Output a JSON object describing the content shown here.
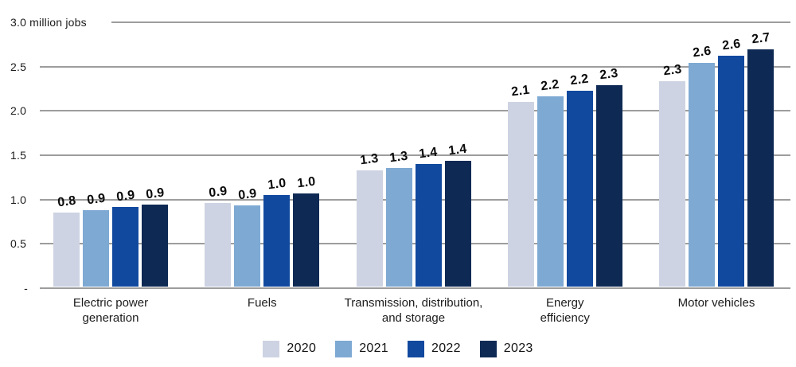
{
  "chart_data": {
    "type": "bar",
    "title": "3.0 million jobs",
    "unit": "million jobs",
    "ymax": 3.0,
    "ylim": [
      0,
      3.0
    ],
    "grid": true,
    "legend_position": "bottom-center",
    "y_ticks": [
      {
        "label": "3.0 million jobs",
        "value": 3.0
      },
      {
        "label": "2.5",
        "value": 2.5
      },
      {
        "label": "2.0",
        "value": 2.0
      },
      {
        "label": "1.5",
        "value": 1.5
      },
      {
        "label": "1.0",
        "value": 1.0
      },
      {
        "label": "0.5",
        "value": 0.5
      },
      {
        "label": "-",
        "value": 0
      }
    ],
    "categories": [
      "Electric power generation",
      "Fuels",
      "Transmission, distribution, and storage",
      "Energy efficiency",
      "Motor vehicles"
    ],
    "series": [
      {
        "name": "2020",
        "values": [
          0.8,
          0.9,
          1.3,
          2.1,
          2.3
        ]
      },
      {
        "name": "2021",
        "values": [
          0.9,
          0.9,
          1.3,
          2.2,
          2.6
        ]
      },
      {
        "name": "2022",
        "values": [
          0.9,
          1.0,
          1.4,
          2.2,
          2.6
        ]
      },
      {
        "name": "2023",
        "values": [
          0.9,
          1.0,
          1.4,
          2.3,
          2.7
        ]
      }
    ],
    "colors": {
      "2020": "#cdd3e2",
      "2021": "#7ea9d3",
      "2022": "#11499e",
      "2023": "#0e2a54"
    },
    "gridline_color": "#9d9d9d",
    "groups": [
      {
        "label_lines": [
          "Electric power",
          "generation"
        ],
        "bars": [
          {
            "year": "2020",
            "label": "0.8",
            "value_est": 0.84
          },
          {
            "year": "2021",
            "label": "0.9",
            "value_est": 0.87
          },
          {
            "year": "2022",
            "label": "0.9",
            "value_est": 0.9
          },
          {
            "year": "2023",
            "label": "0.9",
            "value_est": 0.93
          }
        ]
      },
      {
        "label_lines": [
          "Fuels"
        ],
        "bars": [
          {
            "year": "2020",
            "label": "0.9",
            "value_est": 0.95
          },
          {
            "year": "2021",
            "label": "0.9",
            "value_est": 0.92
          },
          {
            "year": "2022",
            "label": "1.0",
            "value_est": 1.04
          },
          {
            "year": "2023",
            "label": "1.0",
            "value_est": 1.06
          }
        ]
      },
      {
        "label_lines": [
          "Transmission, distribution,",
          "and storage"
        ],
        "bars": [
          {
            "year": "2020",
            "label": "1.3",
            "value_est": 1.32
          },
          {
            "year": "2021",
            "label": "1.3",
            "value_est": 1.35
          },
          {
            "year": "2022",
            "label": "1.4",
            "value_est": 1.39
          },
          {
            "year": "2023",
            "label": "1.4",
            "value_est": 1.43
          }
        ]
      },
      {
        "label_lines": [
          "Energy",
          "efficiency"
        ],
        "bars": [
          {
            "year": "2020",
            "label": "2.1",
            "value_est": 2.1
          },
          {
            "year": "2021",
            "label": "2.2",
            "value_est": 2.16
          },
          {
            "year": "2022",
            "label": "2.2",
            "value_est": 2.22
          },
          {
            "year": "2023",
            "label": "2.3",
            "value_est": 2.29
          }
        ]
      },
      {
        "label_lines": [
          "Motor vehicles"
        ],
        "bars": [
          {
            "year": "2020",
            "label": "2.3",
            "value_est": 2.33
          },
          {
            "year": "2021",
            "label": "2.6",
            "value_est": 2.54
          },
          {
            "year": "2022",
            "label": "2.6",
            "value_est": 2.62
          },
          {
            "year": "2023",
            "label": "2.7",
            "value_est": 2.69
          }
        ]
      }
    ],
    "legend": [
      {
        "label": "2020",
        "color": "#cdd3e2"
      },
      {
        "label": "2021",
        "color": "#7ea9d3"
      },
      {
        "label": "2022",
        "color": "#11499e"
      },
      {
        "label": "2023",
        "color": "#0e2a54"
      }
    ]
  }
}
